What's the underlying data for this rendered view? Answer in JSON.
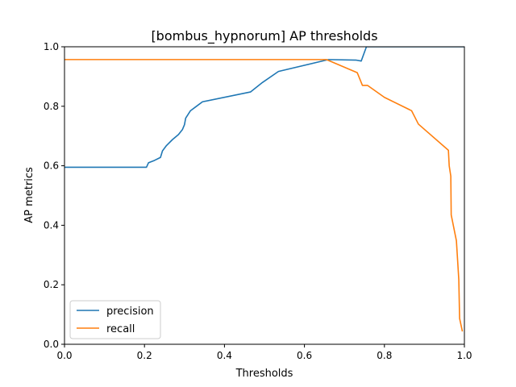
{
  "chart_data": {
    "type": "line",
    "title": "[bombus_hypnorum] AP thresholds",
    "xlabel": "Thresholds",
    "ylabel": "AP metrics",
    "xlim": [
      0,
      1
    ],
    "ylim": [
      0,
      1
    ],
    "xticks": [
      "0.0",
      "0.2",
      "0.4",
      "0.6",
      "0.8",
      "1.0"
    ],
    "yticks": [
      "0.0",
      "0.2",
      "0.4",
      "0.6",
      "0.8",
      "1.0"
    ],
    "grid": false,
    "legend_position": "lower-left",
    "series": [
      {
        "name": "precision",
        "color": "#1f77b4",
        "points": [
          [
            0.0,
            0.595
          ],
          [
            0.205,
            0.595
          ],
          [
            0.21,
            0.61
          ],
          [
            0.225,
            0.618
          ],
          [
            0.24,
            0.628
          ],
          [
            0.245,
            0.65
          ],
          [
            0.255,
            0.668
          ],
          [
            0.27,
            0.688
          ],
          [
            0.285,
            0.705
          ],
          [
            0.295,
            0.722
          ],
          [
            0.3,
            0.738
          ],
          [
            0.303,
            0.76
          ],
          [
            0.315,
            0.785
          ],
          [
            0.33,
            0.8
          ],
          [
            0.345,
            0.815
          ],
          [
            0.465,
            0.848
          ],
          [
            0.495,
            0.88
          ],
          [
            0.535,
            0.917
          ],
          [
            0.66,
            0.957
          ],
          [
            0.73,
            0.955
          ],
          [
            0.742,
            0.952
          ],
          [
            0.755,
            1.0
          ],
          [
            0.8,
            1.0
          ],
          [
            1.0,
            1.0
          ]
        ]
      },
      {
        "name": "recall",
        "color": "#ff7f0e",
        "points": [
          [
            0.0,
            0.957
          ],
          [
            0.655,
            0.957
          ],
          [
            0.732,
            0.913
          ],
          [
            0.745,
            0.87
          ],
          [
            0.758,
            0.87
          ],
          [
            0.8,
            0.83
          ],
          [
            0.868,
            0.785
          ],
          [
            0.885,
            0.74
          ],
          [
            0.96,
            0.652
          ],
          [
            0.962,
            0.6
          ],
          [
            0.966,
            0.565
          ],
          [
            0.967,
            0.435
          ],
          [
            0.98,
            0.348
          ],
          [
            0.986,
            0.217
          ],
          [
            0.988,
            0.087
          ],
          [
            0.995,
            0.043
          ]
        ]
      }
    ]
  }
}
